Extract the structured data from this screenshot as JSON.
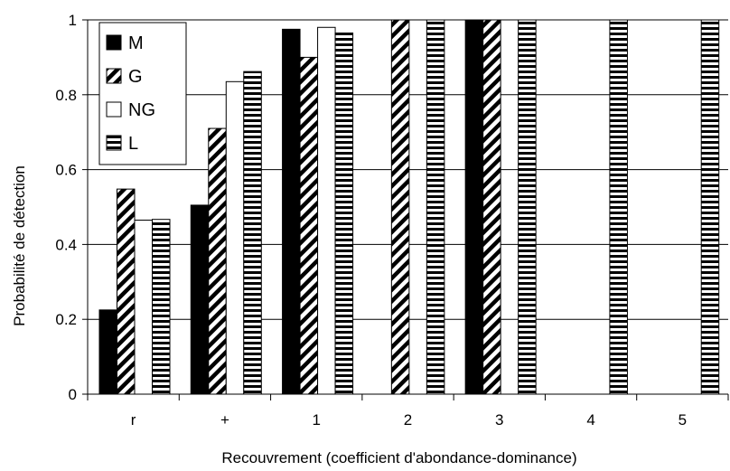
{
  "chart_data": {
    "type": "bar",
    "categories": [
      "r",
      "+",
      "1",
      "2",
      "3",
      "4",
      "5"
    ],
    "series": [
      {
        "name": "M",
        "fill": "solid",
        "values": [
          0.225,
          0.505,
          0.975,
          null,
          1.0,
          null,
          null
        ]
      },
      {
        "name": "G",
        "fill": "diagonal",
        "values": [
          0.548,
          0.71,
          0.9,
          1.0,
          1.0,
          null,
          null
        ]
      },
      {
        "name": "NG",
        "fill": "empty",
        "values": [
          0.465,
          0.835,
          0.98,
          null,
          null,
          null,
          null
        ]
      },
      {
        "name": "L",
        "fill": "horizontal",
        "values": [
          0.467,
          0.862,
          0.965,
          1.0,
          1.0,
          1.0,
          1.0
        ]
      }
    ],
    "xlabel": "Recouvrement (coefficient d'abondance-dominance)",
    "ylabel": "Probabilité de détection",
    "ylim": [
      0,
      1
    ],
    "yticks": [
      "0",
      "0.2",
      "0.4",
      "0.6",
      "0.8",
      "1"
    ],
    "grid": true,
    "legend": "top-left",
    "colors": {
      "bar_fill": "#000000",
      "grid": "#000000",
      "background": "#ffffff"
    }
  }
}
